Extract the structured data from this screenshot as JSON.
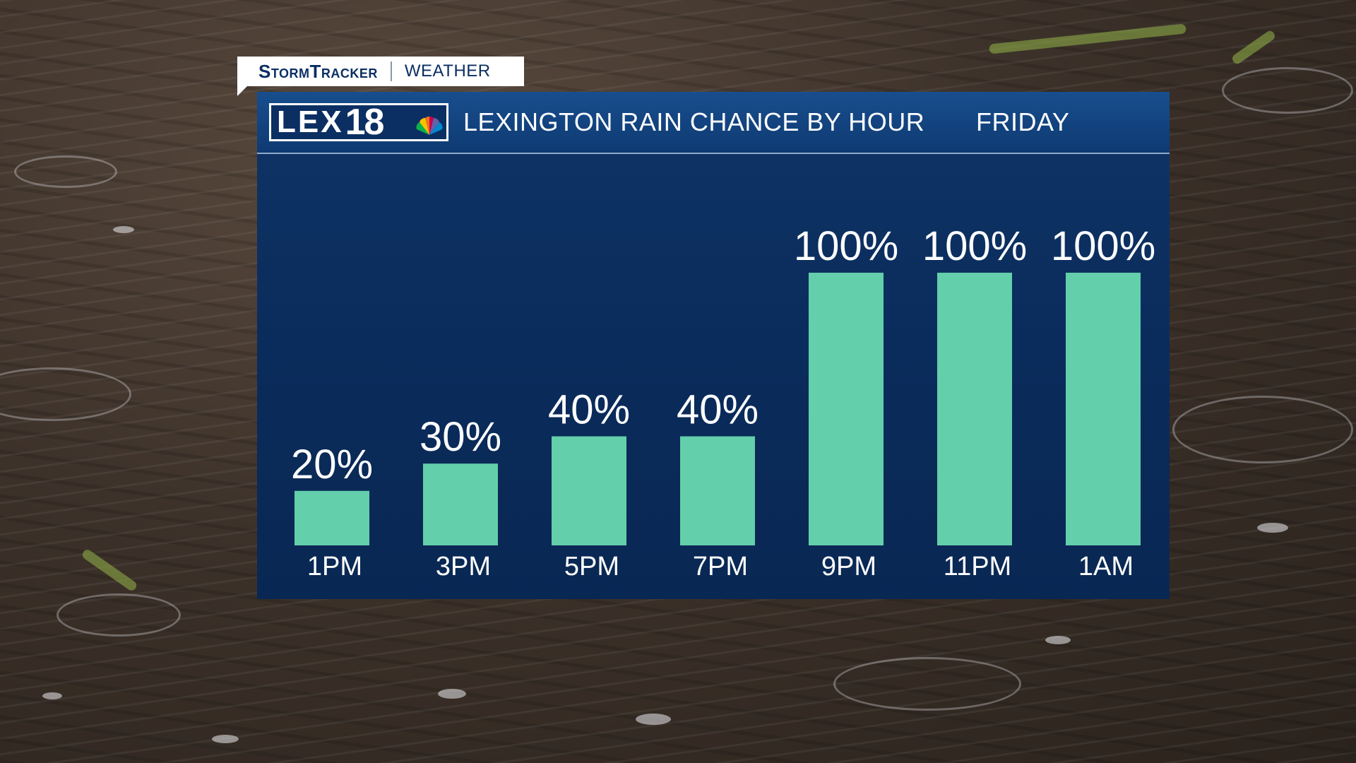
{
  "brand": {
    "name": "StormTracker",
    "section": "WEATHER"
  },
  "logo": {
    "letters": "LEX",
    "number": "18",
    "icon": "peacock-icon"
  },
  "colors": {
    "bar": "#63cfab",
    "panel": "#0a2c5c",
    "header": "#144680",
    "text": "#ffffff"
  },
  "chart_data": {
    "type": "bar",
    "title": "LEXINGTON RAIN CHANCE BY HOUR",
    "subtitle": "FRIDAY",
    "categories": [
      "1PM",
      "3PM",
      "5PM",
      "7PM",
      "9PM",
      "11PM",
      "1AM"
    ],
    "values": [
      20,
      30,
      40,
      40,
      100,
      100,
      100
    ],
    "value_labels": [
      "20%",
      "30%",
      "40%",
      "40%",
      "100%",
      "100%",
      "100%"
    ],
    "unit": "%",
    "ylim": [
      0,
      100
    ],
    "grid": false,
    "legend": "none"
  }
}
